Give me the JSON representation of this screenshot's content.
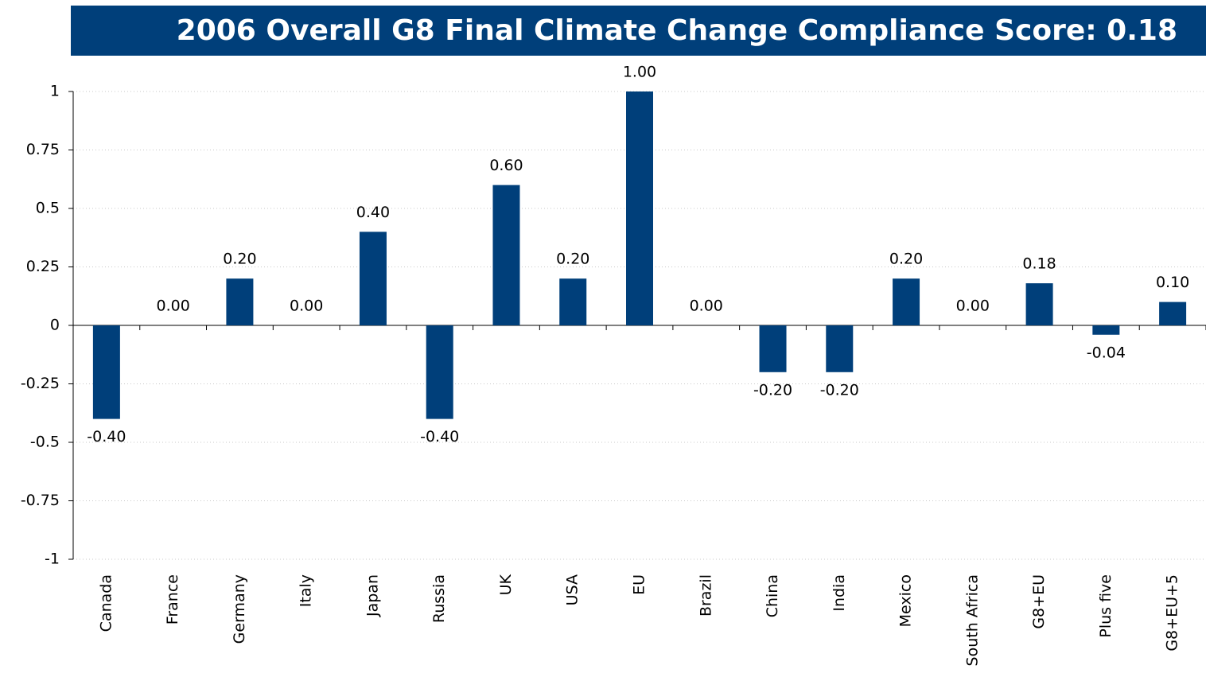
{
  "chart_data": {
    "type": "bar",
    "title": "2006 Overall G8 Final Climate Change Compliance Score: 0.18",
    "categories": [
      "Canada",
      "France",
      "Germany",
      "Italy",
      "Japan",
      "Russia",
      "UK",
      "USA",
      "EU",
      "Brazil",
      "China",
      "India",
      "Mexico",
      "South Africa",
      "G8+EU",
      "Plus five",
      "G8+EU+5"
    ],
    "values": [
      -0.4,
      0,
      0.2,
      0,
      0.4,
      -0.4,
      0.6,
      0.2,
      1,
      0,
      -0.2,
      -0.2,
      0.2,
      0,
      0.18,
      -0.04,
      0.1
    ],
    "value_labels": [
      "-0.40",
      "0.00",
      "0.20",
      "0.00",
      "0.40",
      "-0.40",
      "0.60",
      "0.20",
      "1.00",
      "0.00",
      "-0.20",
      "-0.20",
      "0.20",
      "0.00",
      "0.18",
      "-0.04",
      "0.10"
    ],
    "color": "#003f7a",
    "ylim": [
      -1,
      1
    ],
    "yticks": [
      -1,
      -0.75,
      -0.5,
      -0.25,
      0,
      0.25,
      0.5,
      0.75,
      1
    ],
    "grid": true
  }
}
